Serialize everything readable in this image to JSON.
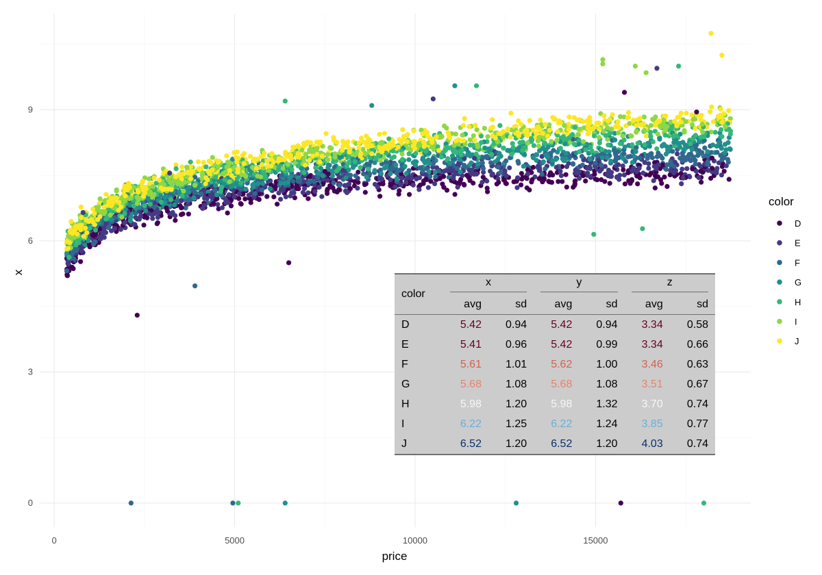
{
  "chart_data": {
    "type": "scatter",
    "xlabel": "price",
    "ylabel": "x",
    "xlim": [
      -400,
      19300
    ],
    "ylim": [
      -0.55,
      11.2
    ],
    "x_ticks": [
      0,
      5000,
      10000,
      15000
    ],
    "y_ticks": [
      0,
      3,
      6,
      9
    ],
    "grid": true,
    "legend": {
      "title": "color",
      "placement": "right",
      "items": [
        {
          "label": "D",
          "color": "#440154"
        },
        {
          "label": "E",
          "color": "#443A83"
        },
        {
          "label": "F",
          "color": "#31688E"
        },
        {
          "label": "G",
          "color": "#21908C"
        },
        {
          "label": "H",
          "color": "#35B779"
        },
        {
          "label": "I",
          "color": "#8FD744"
        },
        {
          "label": "J",
          "color": "#FDE725"
        }
      ]
    },
    "series": [
      {
        "name": "D",
        "color": "#440154",
        "trend_offset": -0.5,
        "spread": 0.28
      },
      {
        "name": "E",
        "color": "#443A83",
        "trend_offset": -0.4,
        "spread": 0.3
      },
      {
        "name": "F",
        "color": "#31688E",
        "trend_offset": -0.22,
        "spread": 0.3
      },
      {
        "name": "G",
        "color": "#21908C",
        "trend_offset": -0.08,
        "spread": 0.3
      },
      {
        "name": "H",
        "color": "#35B779",
        "trend_offset": 0.08,
        "spread": 0.3
      },
      {
        "name": "I",
        "color": "#8FD744",
        "trend_offset": 0.22,
        "spread": 0.28
      },
      {
        "name": "J",
        "color": "#FDE725",
        "trend_offset": 0.3,
        "spread": 0.26
      }
    ],
    "zero_points": [
      {
        "x": 2130,
        "y": 0,
        "color": "#31688E"
      },
      {
        "x": 4950,
        "y": 0,
        "color": "#31688E"
      },
      {
        "x": 5100,
        "y": 0,
        "color": "#35B779"
      },
      {
        "x": 6400,
        "y": 0,
        "color": "#21908C"
      },
      {
        "x": 12800,
        "y": 0,
        "color": "#21908C"
      },
      {
        "x": 15700,
        "y": 0,
        "color": "#440154"
      },
      {
        "x": 18000,
        "y": 0,
        "color": "#35B779"
      }
    ],
    "outliers": [
      {
        "x": 15200,
        "y": 10.15,
        "color": "#8FD744"
      },
      {
        "x": 15200,
        "y": 10.05,
        "color": "#8FD744"
      },
      {
        "x": 16100,
        "y": 10.0,
        "color": "#8FD744"
      },
      {
        "x": 16400,
        "y": 9.85,
        "color": "#8FD744"
      },
      {
        "x": 17300,
        "y": 10.0,
        "color": "#35B779"
      },
      {
        "x": 18200,
        "y": 10.75,
        "color": "#FDE725"
      },
      {
        "x": 18500,
        "y": 10.25,
        "color": "#FDE725"
      },
      {
        "x": 16700,
        "y": 9.95,
        "color": "#443A83"
      },
      {
        "x": 6400,
        "y": 9.2,
        "color": "#35B779"
      },
      {
        "x": 11100,
        "y": 9.55,
        "color": "#21908C"
      },
      {
        "x": 11700,
        "y": 9.55,
        "color": "#35B779"
      },
      {
        "x": 10500,
        "y": 9.25,
        "color": "#443A83"
      },
      {
        "x": 8800,
        "y": 9.1,
        "color": "#21908C"
      },
      {
        "x": 15800,
        "y": 9.4,
        "color": "#440154"
      },
      {
        "x": 17800,
        "y": 8.95,
        "color": "#440154"
      },
      {
        "x": 800,
        "y": 6.65,
        "color": "#443A83"
      },
      {
        "x": 3200,
        "y": 7.55,
        "color": "#443A83"
      },
      {
        "x": 14950,
        "y": 6.15,
        "color": "#35B779"
      },
      {
        "x": 16300,
        "y": 6.28,
        "color": "#35B779"
      },
      {
        "x": 3900,
        "y": 4.97,
        "color": "#31688E"
      },
      {
        "x": 2300,
        "y": 4.3,
        "color": "#440154"
      },
      {
        "x": 6500,
        "y": 5.5,
        "color": "#440154"
      }
    ]
  },
  "table": {
    "color_header": "color",
    "groups": [
      "x",
      "y",
      "z"
    ],
    "sub_headers": [
      "avg",
      "sd",
      "avg",
      "sd",
      "avg",
      "sd"
    ],
    "rows": [
      {
        "label": "D",
        "values": [
          "5.42",
          "0.94",
          "5.42",
          "0.94",
          "3.34",
          "0.58"
        ],
        "avg_color": "#67001F"
      },
      {
        "label": "E",
        "values": [
          "5.41",
          "0.96",
          "5.42",
          "0.99",
          "3.34",
          "0.66"
        ],
        "avg_color": "#67001F"
      },
      {
        "label": "F",
        "values": [
          "5.61",
          "1.01",
          "5.62",
          "1.00",
          "3.46",
          "0.63"
        ],
        "avg_color": "#D6604D"
      },
      {
        "label": "G",
        "values": [
          "5.68",
          "1.08",
          "5.68",
          "1.08",
          "3.51",
          "0.67"
        ],
        "avg_color": "#E7836A"
      },
      {
        "label": "H",
        "values": [
          "5.98",
          "1.20",
          "5.98",
          "1.32",
          "3.70",
          "0.74"
        ],
        "avg_color": "#F7F7F7"
      },
      {
        "label": "I",
        "values": [
          "6.22",
          "1.25",
          "6.22",
          "1.24",
          "3.85",
          "0.77"
        ],
        "avg_color": "#6BAED6"
      },
      {
        "label": "J",
        "values": [
          "6.52",
          "1.20",
          "6.52",
          "1.20",
          "4.03",
          "0.74"
        ],
        "avg_color": "#08306B"
      }
    ]
  }
}
